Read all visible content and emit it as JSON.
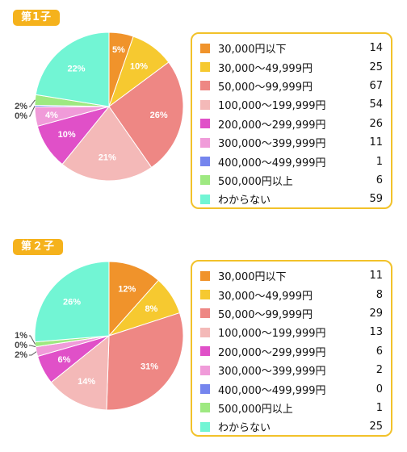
{
  "chart_data": [
    {
      "type": "pie",
      "title": "第1子",
      "categories": [
        "30,000円以下",
        "30,000〜49,999円",
        "50,000〜99,999円",
        "100,000〜199,999円",
        "200,000〜299,999円",
        "300,000〜399,999円",
        "400,000〜499,999円",
        "500,000円以上",
        "わからない"
      ],
      "values": [
        14,
        25,
        67,
        54,
        26,
        11,
        1,
        6,
        59
      ],
      "percent_labels": [
        "5%",
        "10%",
        "26%",
        "21%",
        "10%",
        "4%",
        "0%",
        "2%",
        "22%"
      ],
      "colors": [
        "#f0932b",
        "#f6c930",
        "#ee8784",
        "#f4b9b8",
        "#e050c8",
        "#f09bd9",
        "#7585ee",
        "#9ee981",
        "#72f5d4"
      ]
    },
    {
      "type": "pie",
      "title": "第２子",
      "categories": [
        "30,000円以下",
        "30,000〜49,999円",
        "50,000〜99,999円",
        "100,000〜199,999円",
        "200,000〜299,999円",
        "300,000〜399,999円",
        "400,000〜499,999円",
        "500,000円以上",
        "わからない"
      ],
      "values": [
        11,
        8,
        29,
        13,
        6,
        2,
        0,
        1,
        25
      ],
      "percent_labels": [
        "12%",
        "8%",
        "31%",
        "14%",
        "6%",
        "2%",
        "0%",
        "1%",
        "26%"
      ],
      "colors": [
        "#f0932b",
        "#f6c930",
        "#ee8784",
        "#f4b9b8",
        "#e050c8",
        "#f09bd9",
        "#7585ee",
        "#9ee981",
        "#72f5d4"
      ]
    }
  ]
}
